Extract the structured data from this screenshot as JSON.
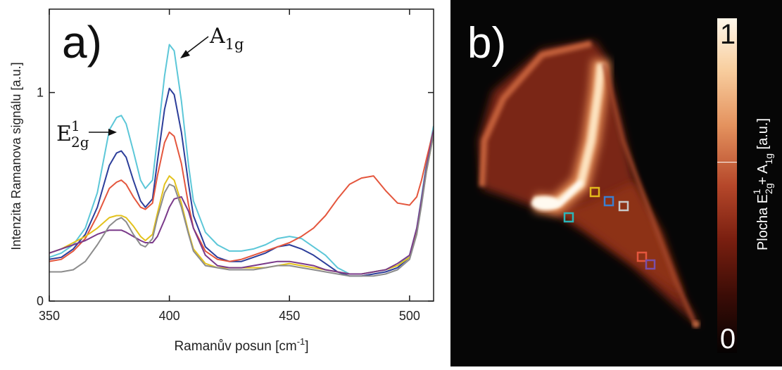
{
  "chart_data": [
    {
      "type": "line",
      "panel_label": "a)",
      "xlabel": "Ramanův posun [cm",
      "xlabel_sup": "-1",
      "xlabel_end": "]",
      "ylabel": "Intenzita Ramanova signálu [a.u.]",
      "xlim": [
        350,
        510
      ],
      "ylim": [
        0,
        1.4
      ],
      "x_ticks": [
        350,
        400,
        450,
        500
      ],
      "y_ticks": [
        0,
        1
      ],
      "grid": false,
      "annotations": [
        {
          "base": "A",
          "sub": "1g",
          "sup": "",
          "points_to_x": 400
        },
        {
          "base": "E",
          "sub": "2g",
          "sup": "1",
          "points_to_x": 380
        }
      ],
      "x": [
        350,
        355,
        360,
        365,
        370,
        375,
        378,
        380,
        382,
        385,
        388,
        390,
        393,
        395,
        398,
        400,
        402,
        405,
        408,
        410,
        415,
        420,
        425,
        430,
        435,
        440,
        445,
        450,
        455,
        460,
        465,
        470,
        475,
        480,
        485,
        490,
        495,
        500,
        503,
        505,
        507,
        510
      ],
      "series": [
        {
          "color": "#5cc7d8",
          "values": [
            0.21,
            0.23,
            0.27,
            0.35,
            0.52,
            0.82,
            0.88,
            0.89,
            0.85,
            0.72,
            0.58,
            0.54,
            0.58,
            0.78,
            1.08,
            1.23,
            1.2,
            0.96,
            0.65,
            0.48,
            0.33,
            0.27,
            0.24,
            0.24,
            0.25,
            0.27,
            0.3,
            0.31,
            0.3,
            0.26,
            0.22,
            0.16,
            0.13,
            0.13,
            0.14,
            0.15,
            0.17,
            0.22,
            0.35,
            0.5,
            0.66,
            0.84
          ]
        },
        {
          "color": "#2c3e9a",
          "values": [
            0.2,
            0.21,
            0.25,
            0.32,
            0.45,
            0.65,
            0.71,
            0.72,
            0.69,
            0.58,
            0.48,
            0.45,
            0.49,
            0.67,
            0.92,
            1.02,
            0.99,
            0.81,
            0.56,
            0.41,
            0.26,
            0.21,
            0.19,
            0.19,
            0.21,
            0.23,
            0.26,
            0.27,
            0.25,
            0.22,
            0.18,
            0.14,
            0.12,
            0.12,
            0.13,
            0.14,
            0.16,
            0.21,
            0.33,
            0.48,
            0.64,
            0.82
          ]
        },
        {
          "color": "#e4563d",
          "values": [
            0.19,
            0.2,
            0.24,
            0.3,
            0.41,
            0.54,
            0.57,
            0.58,
            0.56,
            0.5,
            0.45,
            0.44,
            0.47,
            0.6,
            0.76,
            0.81,
            0.79,
            0.66,
            0.46,
            0.35,
            0.24,
            0.2,
            0.19,
            0.2,
            0.22,
            0.24,
            0.26,
            0.28,
            0.31,
            0.35,
            0.41,
            0.49,
            0.56,
            0.59,
            0.6,
            0.53,
            0.47,
            0.46,
            0.5,
            0.58,
            0.68,
            0.82
          ]
        },
        {
          "color": "#e3c21c",
          "values": [
            0.23,
            0.25,
            0.28,
            0.31,
            0.35,
            0.4,
            0.41,
            0.41,
            0.4,
            0.36,
            0.31,
            0.29,
            0.32,
            0.42,
            0.56,
            0.6,
            0.58,
            0.47,
            0.33,
            0.25,
            0.18,
            0.16,
            0.16,
            0.16,
            0.16,
            0.16,
            0.17,
            0.18,
            0.17,
            0.16,
            0.15,
            0.14,
            0.13,
            0.13,
            0.14,
            0.15,
            0.17,
            0.21,
            0.33,
            0.47,
            0.62,
            0.8
          ]
        },
        {
          "color": "#7a3a8a",
          "values": [
            0.23,
            0.25,
            0.27,
            0.29,
            0.32,
            0.34,
            0.34,
            0.34,
            0.33,
            0.31,
            0.29,
            0.28,
            0.28,
            0.31,
            0.39,
            0.45,
            0.49,
            0.5,
            0.43,
            0.35,
            0.22,
            0.17,
            0.16,
            0.16,
            0.17,
            0.18,
            0.19,
            0.19,
            0.18,
            0.17,
            0.15,
            0.14,
            0.13,
            0.13,
            0.14,
            0.15,
            0.18,
            0.22,
            0.35,
            0.49,
            0.64,
            0.82
          ]
        },
        {
          "color": "#8c8c8c",
          "values": [
            0.14,
            0.14,
            0.15,
            0.19,
            0.27,
            0.36,
            0.39,
            0.4,
            0.38,
            0.32,
            0.27,
            0.26,
            0.3,
            0.4,
            0.52,
            0.56,
            0.55,
            0.45,
            0.32,
            0.24,
            0.17,
            0.16,
            0.15,
            0.15,
            0.15,
            0.16,
            0.17,
            0.17,
            0.16,
            0.15,
            0.14,
            0.13,
            0.12,
            0.12,
            0.12,
            0.13,
            0.15,
            0.2,
            0.32,
            0.46,
            0.62,
            0.8
          ]
        }
      ]
    },
    {
      "type": "heatmap",
      "panel_label": "b)",
      "colorbar": {
        "label_prefix": "Plocha  E",
        "label_sub1": "2g",
        "label_sup1": "1",
        "label_mid": " + A",
        "label_sub2": "1g",
        "label_suffix": " [a.u.]",
        "max_label": "1",
        "min_label": "0",
        "range": [
          0,
          1
        ],
        "marker_level": 0.57,
        "colors": [
          "#050202",
          "#3a0c06",
          "#7a1f10",
          "#b5472a",
          "#e4925e",
          "#f8cfa0",
          "#fff6ea"
        ]
      },
      "markers": [
        {
          "color": "#e3b91c"
        },
        {
          "color": "#3b7fd0"
        },
        {
          "color": "#c8c8c8"
        },
        {
          "color": "#2bb5b8"
        },
        {
          "color": "#e4563d"
        },
        {
          "color": "#7a4fa8"
        }
      ]
    }
  ]
}
